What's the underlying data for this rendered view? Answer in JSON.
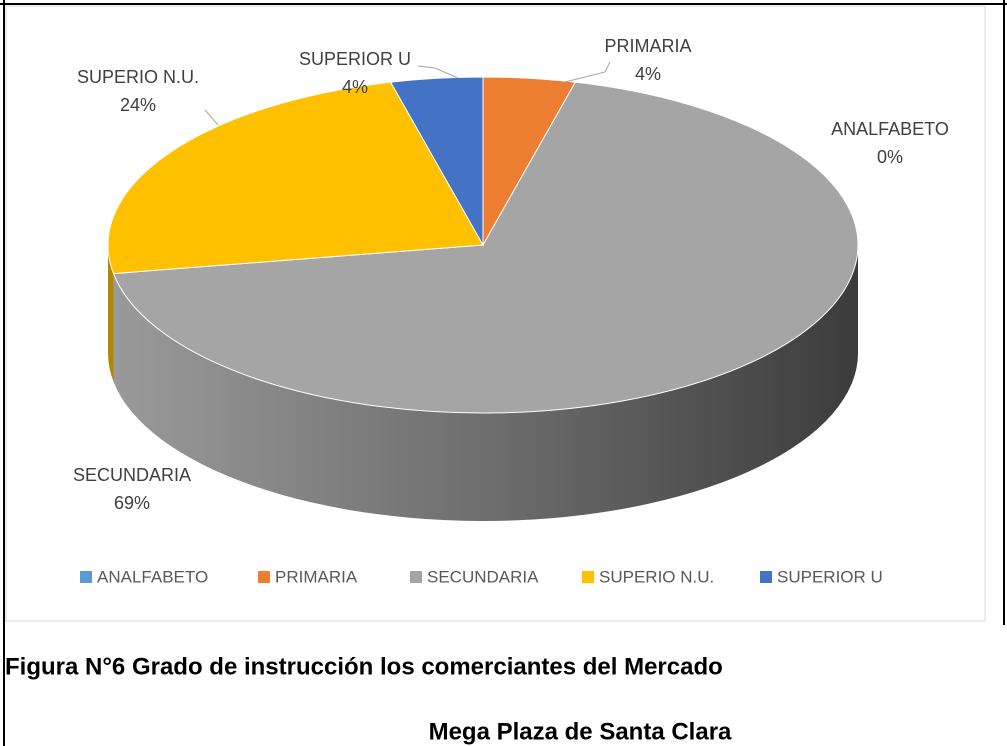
{
  "chart_data": {
    "type": "pie",
    "categories": [
      "ANALFABETO",
      "PRIMARIA",
      "SECUNDARIA",
      "SUPERIO N.U.",
      "SUPERIOR U"
    ],
    "values": [
      0,
      4,
      69,
      24,
      4
    ],
    "value_labels": [
      "0%",
      "4%",
      "69%",
      "24%",
      "4%"
    ],
    "colors": [
      "#5b9bd5",
      "#ed7d31",
      "#a5a5a5",
      "#ffc000",
      "#4472c4"
    ],
    "legend": "bottom",
    "caption": [
      "Figura N°6 Grado de instrucción los comerciantes del Mercado",
      "Mega Plaza de Santa Clara"
    ]
  }
}
